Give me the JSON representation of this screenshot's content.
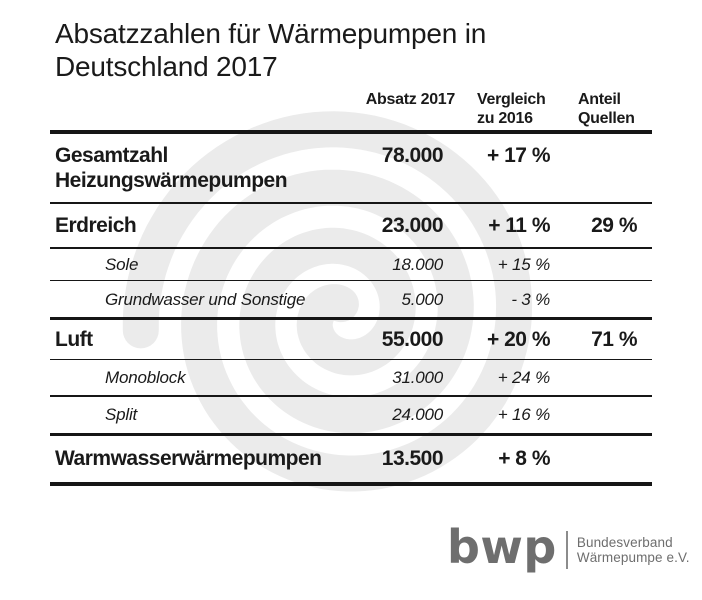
{
  "title": "Absatzzahlen für Wärmepumpen in\nDeutschland 2017",
  "colors": {
    "text": "#1a1a1a",
    "rule": "#161616",
    "watermark": "#ebebeb",
    "logo_gray": "#6e6e6e"
  },
  "table": {
    "columns": {
      "absatz": "Absatz 2017",
      "vergleich": "Vergleich\nzu 2016",
      "anteil": "Anteil\nQuellen"
    },
    "rows": [
      {
        "label": "Gesamtzahl\nHeizungswärmepumpen",
        "absatz": "78.000",
        "vergleich": "+ 17 %",
        "anteil": ""
      },
      {
        "label": "Erdreich",
        "absatz": "23.000",
        "vergleich": "+ 11 %",
        "anteil": "29 %"
      },
      {
        "label": "Sole",
        "absatz": "18.000",
        "vergleich": "+ 15 %",
        "anteil": ""
      },
      {
        "label": "Grundwasser und Sonstige",
        "absatz": "5.000",
        "vergleich": "- 3 %",
        "anteil": ""
      },
      {
        "label": "Luft",
        "absatz": "55.000",
        "vergleich": "+ 20 %",
        "anteil": "71 %"
      },
      {
        "label": "Monoblock",
        "absatz": "31.000",
        "vergleich": "+ 24 %",
        "anteil": ""
      },
      {
        "label": "Split",
        "absatz": "24.000",
        "vergleich": "+ 16 %",
        "anteil": ""
      },
      {
        "label": "Warmwasserwärmepumpen",
        "absatz": "13.500",
        "vergleich": "+ 8 %",
        "anteil": ""
      }
    ]
  },
  "logo": {
    "wordmark": "bwp",
    "org_name": "Bundesverband\nWärmepumpe e.V."
  },
  "chart_data": {
    "type": "table",
    "title": "Absatzzahlen für Wärmepumpen in Deutschland 2017",
    "columns": [
      "Absatz 2017",
      "Vergleich zu 2016",
      "Anteil Quellen"
    ],
    "rows": [
      {
        "label": "Gesamtzahl Heizungswärmepumpen",
        "level": "main",
        "absatz_2017": 78000,
        "vergleich_zu_2016_pct": 17,
        "anteil_quellen_pct": null
      },
      {
        "label": "Erdreich",
        "level": "main",
        "absatz_2017": 23000,
        "vergleich_zu_2016_pct": 11,
        "anteil_quellen_pct": 29
      },
      {
        "label": "Sole",
        "level": "sub",
        "absatz_2017": 18000,
        "vergleich_zu_2016_pct": 15,
        "anteil_quellen_pct": null
      },
      {
        "label": "Grundwasser und Sonstige",
        "level": "sub",
        "absatz_2017": 5000,
        "vergleich_zu_2016_pct": -3,
        "anteil_quellen_pct": null
      },
      {
        "label": "Luft",
        "level": "main",
        "absatz_2017": 55000,
        "vergleich_zu_2016_pct": 20,
        "anteil_quellen_pct": 71
      },
      {
        "label": "Monoblock",
        "level": "sub",
        "absatz_2017": 31000,
        "vergleich_zu_2016_pct": 24,
        "anteil_quellen_pct": null
      },
      {
        "label": "Split",
        "level": "sub",
        "absatz_2017": 24000,
        "vergleich_zu_2016_pct": 16,
        "anteil_quellen_pct": null
      },
      {
        "label": "Warmwasserwärmepumpen",
        "level": "main",
        "absatz_2017": 13500,
        "vergleich_zu_2016_pct": 8,
        "anteil_quellen_pct": null
      }
    ]
  }
}
